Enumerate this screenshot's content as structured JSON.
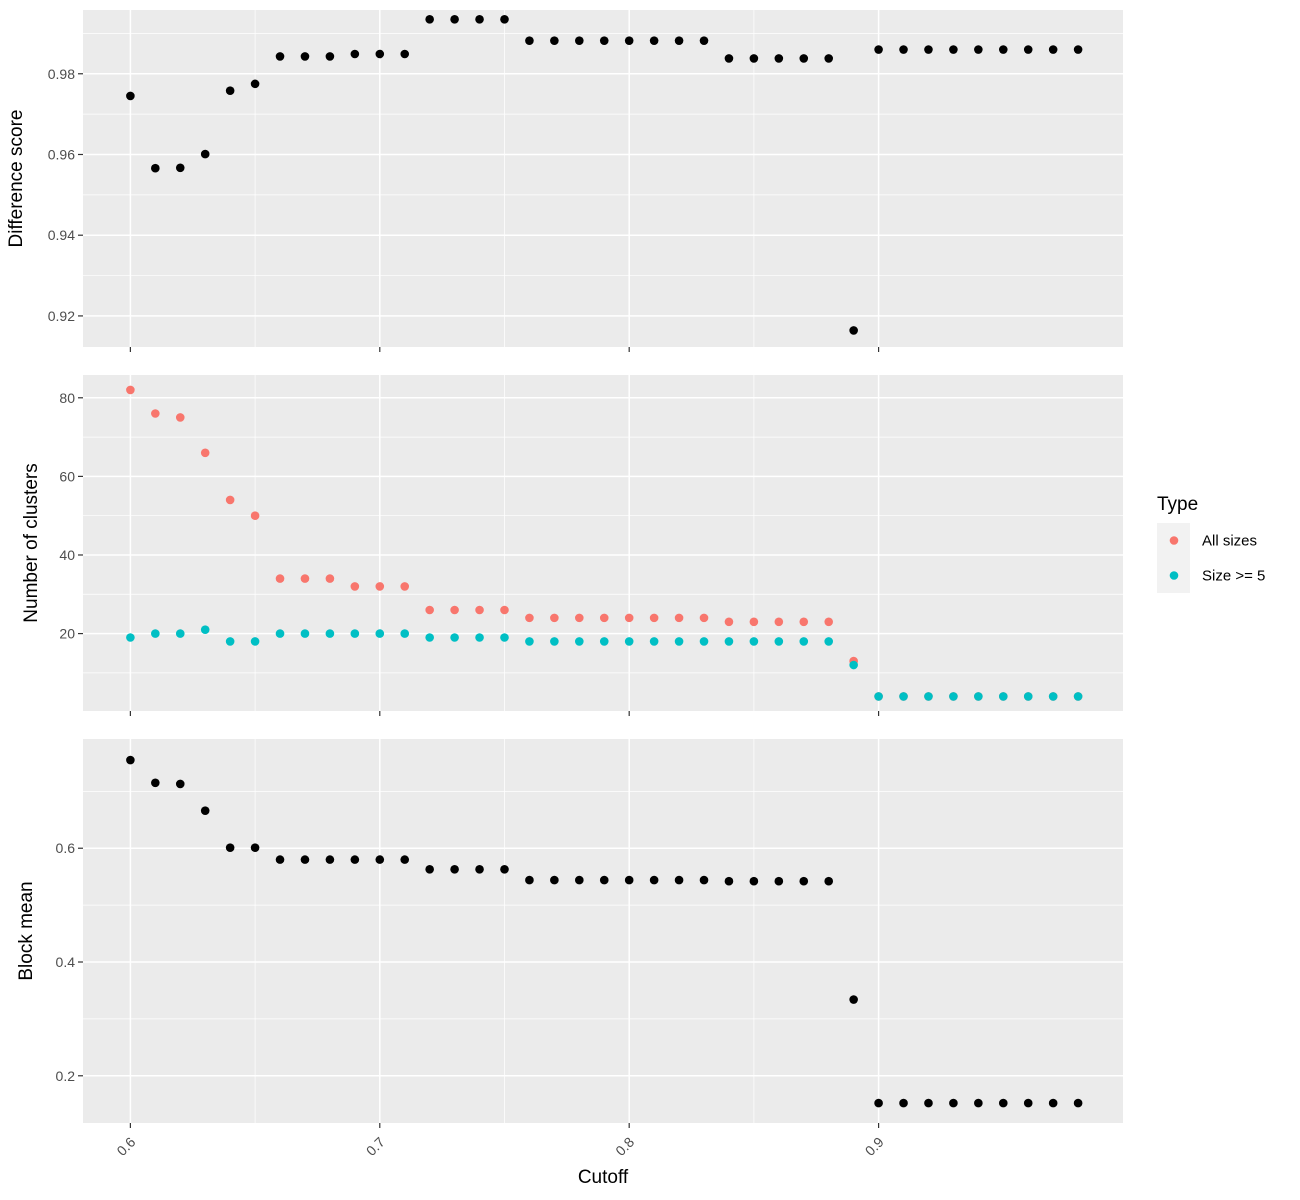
{
  "chart_data": {
    "type": "scatter",
    "xlabel": "Cutoff",
    "x_ticks": [
      "0.6",
      "0.7",
      "0.8",
      "0.9"
    ],
    "x_tick_values": [
      0.6,
      0.7,
      0.8,
      0.9
    ],
    "xlim": [
      0.581,
      0.998
    ],
    "grid": true,
    "legend": {
      "title": "Type",
      "position": "right",
      "entries": [
        {
          "label": "All sizes",
          "color": "#F8766D"
        },
        {
          "label": "Size >= 5",
          "color": "#00BFC4"
        }
      ]
    },
    "x": [
      0.6,
      0.61,
      0.62,
      0.63,
      0.64,
      0.65,
      0.66,
      0.67,
      0.68,
      0.69,
      0.7,
      0.71,
      0.72,
      0.73,
      0.74,
      0.75,
      0.76,
      0.77,
      0.78,
      0.79,
      0.8,
      0.81,
      0.82,
      0.83,
      0.84,
      0.85,
      0.86,
      0.87,
      0.88,
      0.89,
      0.9,
      0.91,
      0.92,
      0.93,
      0.94,
      0.95,
      0.96,
      0.97,
      0.98
    ],
    "panels": [
      {
        "ylabel": "Difference score",
        "y_ticks": [
          "0.92",
          "0.94",
          "0.96",
          "0.98"
        ],
        "y_tick_values": [
          0.92,
          0.94,
          0.96,
          0.98
        ],
        "ylim": [
          0.9123,
          0.9958
        ],
        "series": [
          {
            "color": "#000000",
            "values": [
              0.9745,
              0.9566,
              0.9567,
              0.9601,
              0.9758,
              0.9775,
              0.9843,
              0.9843,
              0.9843,
              0.9849,
              0.9849,
              0.9849,
              0.9935,
              0.9935,
              0.9935,
              0.9935,
              0.9882,
              0.9882,
              0.9882,
              0.9882,
              0.9882,
              0.9882,
              0.9882,
              0.9882,
              0.9838,
              0.9838,
              0.9838,
              0.9838,
              0.9838,
              0.9164,
              0.986,
              0.986,
              0.986,
              0.986,
              0.986,
              0.986,
              0.986,
              0.986,
              0.986
            ]
          }
        ]
      },
      {
        "ylabel": "Number of clusters",
        "y_ticks": [
          "20",
          "40",
          "60",
          "80"
        ],
        "y_tick_values": [
          20,
          40,
          60,
          80
        ],
        "ylim": [
          0.3,
          85.8
        ],
        "series": [
          {
            "name": "All sizes",
            "color": "#F8766D",
            "values": [
              82,
              76,
              75,
              66,
              54,
              50,
              34,
              34,
              34,
              32,
              32,
              32,
              26,
              26,
              26,
              26,
              24,
              24,
              24,
              24,
              24,
              24,
              24,
              24,
              23,
              23,
              23,
              23,
              23,
              13,
              4,
              4,
              4,
              4,
              4,
              4,
              4,
              4,
              4
            ]
          },
          {
            "name": "Size >= 5",
            "color": "#00BFC4",
            "values": [
              19,
              20,
              20,
              21,
              18,
              18,
              20,
              20,
              20,
              20,
              20,
              20,
              19,
              19,
              19,
              19,
              18,
              18,
              18,
              18,
              18,
              18,
              18,
              18,
              18,
              18,
              18,
              18,
              18,
              12,
              4,
              4,
              4,
              4,
              4,
              4,
              4,
              4,
              4
            ]
          }
        ]
      },
      {
        "ylabel": "Block mean",
        "y_ticks": [
          "0.2",
          "0.4",
          "0.6"
        ],
        "y_tick_values": [
          0.2,
          0.4,
          0.6
        ],
        "ylim": [
          0.117,
          0.792
        ],
        "series": [
          {
            "color": "#000000",
            "values": [
              0.755,
              0.715,
              0.713,
              0.666,
              0.601,
              0.601,
              0.58,
              0.58,
              0.58,
              0.58,
              0.58,
              0.58,
              0.563,
              0.563,
              0.563,
              0.563,
              0.544,
              0.544,
              0.544,
              0.544,
              0.544,
              0.544,
              0.544,
              0.544,
              0.542,
              0.542,
              0.542,
              0.542,
              0.542,
              0.334,
              0.152,
              0.152,
              0.152,
              0.152,
              0.152,
              0.152,
              0.152,
              0.152,
              0.152
            ]
          }
        ]
      }
    ]
  }
}
